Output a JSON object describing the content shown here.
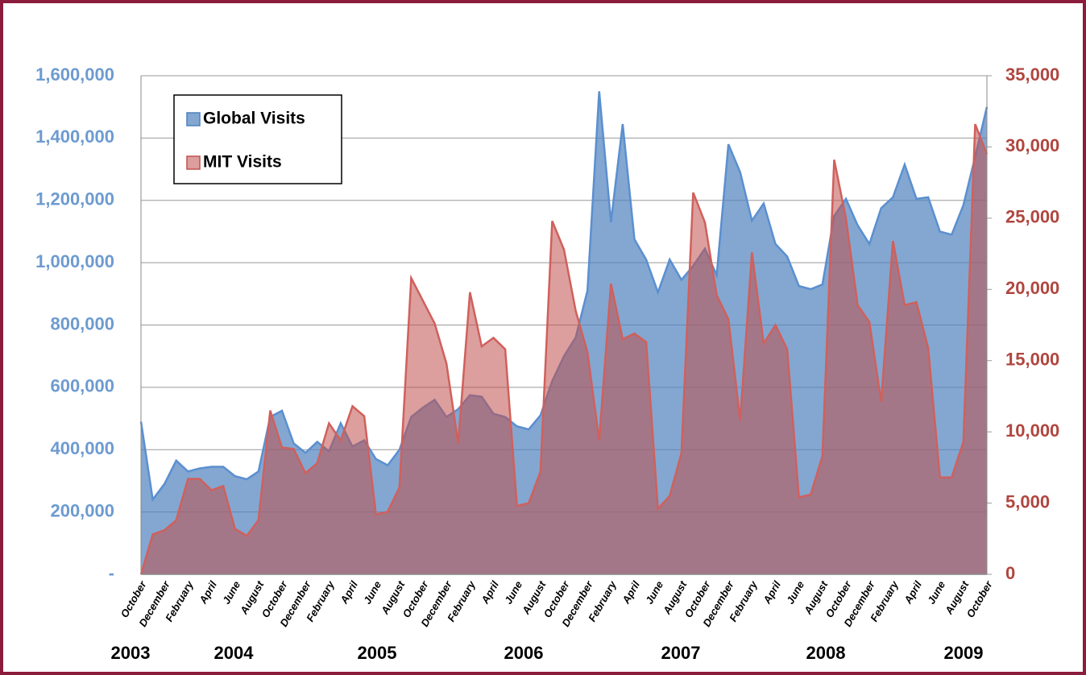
{
  "chart_data": {
    "type": "area",
    "categories": [
      "October",
      null,
      "December",
      null,
      "February",
      null,
      "April",
      null,
      "June",
      null,
      "August",
      null,
      "October",
      null,
      "December",
      null,
      "February",
      null,
      "April",
      null,
      "June",
      null,
      "August",
      null,
      "October",
      null,
      "December",
      null,
      "February",
      null,
      "April",
      null,
      "June",
      null,
      "August",
      null,
      "October",
      null,
      "December",
      null,
      "February",
      null,
      "April",
      null,
      "June",
      null,
      "August",
      null,
      "October",
      null,
      "December",
      null,
      "February",
      null,
      "April",
      null,
      "June",
      null,
      "August",
      null,
      "October",
      null,
      "December",
      null,
      "February",
      null,
      "April",
      null,
      "June",
      null,
      "August",
      null,
      "October"
    ],
    "year_labels": [
      "2003",
      "2004",
      "2005",
      "2006",
      "2007",
      "2008",
      "2009"
    ],
    "series": [
      {
        "name": "Global Visits",
        "color": "#4f81bd",
        "axis": "y",
        "values": [
          490000,
          240000,
          290000,
          365000,
          330000,
          340000,
          345000,
          345000,
          315000,
          305000,
          330000,
          505000,
          525000,
          420000,
          390000,
          425000,
          395000,
          485000,
          410000,
          430000,
          370000,
          350000,
          400000,
          505000,
          535000,
          560000,
          505000,
          530000,
          575000,
          570000,
          515000,
          505000,
          475000,
          465000,
          510000,
          620000,
          700000,
          760000,
          910000,
          1550000,
          1130000,
          1445000,
          1075000,
          1010000,
          905000,
          1010000,
          945000,
          990000,
          1045000,
          960000,
          1380000,
          1290000,
          1135000,
          1190000,
          1060000,
          1020000,
          925000,
          915000,
          930000,
          1150000,
          1205000,
          1120000,
          1060000,
          1175000,
          1210000,
          1315000,
          1205000,
          1210000,
          1100000,
          1090000,
          1185000,
          1340000,
          1500000
        ]
      },
      {
        "name": "MIT Visits",
        "color": "#c0504d",
        "axis": "y2",
        "values": [
          0,
          2800,
          3100,
          3800,
          6700,
          6700,
          5900,
          6200,
          3200,
          2700,
          3800,
          11500,
          8900,
          8800,
          7100,
          7800,
          10600,
          9400,
          11800,
          11100,
          4200,
          4400,
          6100,
          20800,
          19200,
          17600,
          14800,
          9200,
          19800,
          16000,
          16600,
          15800,
          4800,
          5000,
          7200,
          24800,
          22800,
          18500,
          15600,
          9400,
          20400,
          16500,
          16900,
          16300,
          4600,
          5500,
          8500,
          26800,
          24700,
          19600,
          17900,
          10800,
          22600,
          16200,
          17500,
          15800,
          5400,
          5600,
          8300,
          29100,
          25000,
          18900,
          17700,
          12100,
          23400,
          18900,
          19100,
          15900,
          6800,
          6800,
          9300,
          31600,
          29500
        ]
      }
    ],
    "ylim": [
      0,
      1600000
    ],
    "yticks": [
      {
        "value": 0,
        "label": "-"
      },
      {
        "value": 200000,
        "label": "200,000"
      },
      {
        "value": 400000,
        "label": "400,000"
      },
      {
        "value": 600000,
        "label": "600,000"
      },
      {
        "value": 800000,
        "label": "800,000"
      },
      {
        "value": 1000000,
        "label": "1,000,000"
      },
      {
        "value": 1200000,
        "label": "1,200,000"
      },
      {
        "value": 1400000,
        "label": "1,400,000"
      },
      {
        "value": 1600000,
        "label": "1,600,000"
      }
    ],
    "y2lim": [
      0,
      35000
    ],
    "y2ticks": [
      0,
      {
        "value": 5000,
        "label": "5,000"
      },
      {
        "value": 10000,
        "label": "10,000"
      },
      {
        "value": 15000,
        "label": "15,000"
      },
      {
        "value": 20000,
        "label": "20,000"
      },
      {
        "value": 25000,
        "label": "25,000"
      },
      {
        "value": 30000,
        "label": "30,000"
      },
      {
        "value": 35000,
        "label": "35,000"
      }
    ],
    "grid": true,
    "legend": "upper left"
  }
}
